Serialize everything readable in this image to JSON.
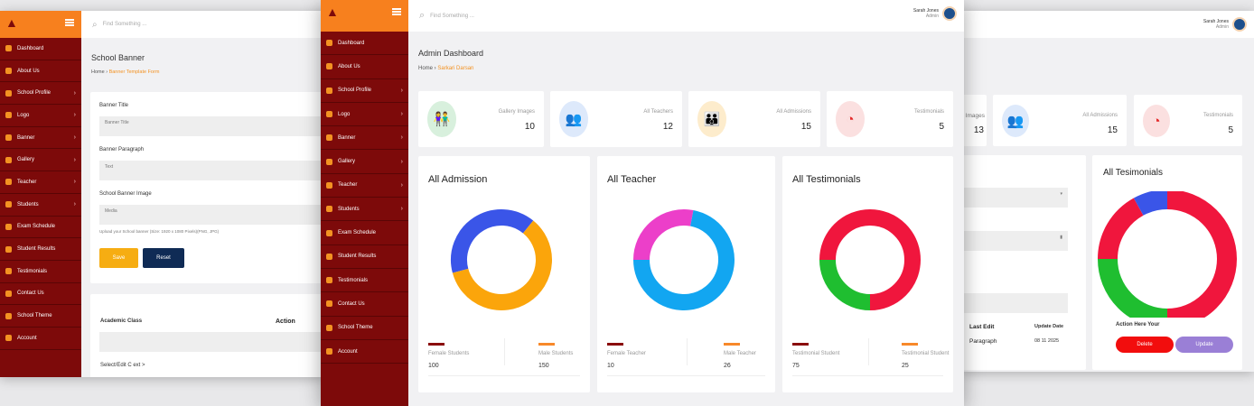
{
  "colors": {
    "sidebar": "#7d0a0a",
    "header": "#f7801e",
    "accent": "#f39222"
  },
  "left": {
    "sidebar": [
      {
        "label": "Dashboard"
      },
      {
        "label": "About Us"
      },
      {
        "label": "School Profile",
        "arrow": true
      },
      {
        "label": "Logo",
        "arrow": true
      },
      {
        "label": "Banner",
        "arrow": true
      },
      {
        "label": "Gallery",
        "arrow": true
      },
      {
        "label": "Teacher",
        "arrow": true
      },
      {
        "label": "Students",
        "arrow": true
      },
      {
        "label": "Exam Schedule"
      },
      {
        "label": "Student Results"
      },
      {
        "label": "Testimonials"
      },
      {
        "label": "Contact Us"
      },
      {
        "label": "School Theme"
      },
      {
        "label": "Account"
      }
    ],
    "search_placeholder": "Find Something ...",
    "title": "School Banner",
    "breadcrumb": {
      "home": "Home",
      "current": "Banner Template Form"
    },
    "form": {
      "title_label": "Banner Title",
      "title_placeholder": "Banner Title",
      "para_label": "Banner Paragraph",
      "para_placeholder": "Text",
      "image_label": "School Banner Image",
      "image_value": "Media",
      "hint": "Upload your School banner (Size: 1920 x 1080 Pixels)(PNG, JPG)",
      "save": "Save",
      "reset": "Reset"
    },
    "section2": {
      "label": "Academic Class",
      "right_label": "Action",
      "footer": "Select/Edit C ext >"
    }
  },
  "center": {
    "search_placeholder": "Find Something ...",
    "user": {
      "name": "Sarah Jones",
      "role": "Admin"
    },
    "sidebar": [
      {
        "label": "Dashboard"
      },
      {
        "label": "About Us"
      },
      {
        "label": "School Profile",
        "arrow": true
      },
      {
        "label": "Logo",
        "arrow": true
      },
      {
        "label": "Banner",
        "arrow": true
      },
      {
        "label": "Gallery",
        "arrow": true
      },
      {
        "label": "Teacher",
        "arrow": true
      },
      {
        "label": "Students",
        "arrow": true
      },
      {
        "label": "Exam Schedule"
      },
      {
        "label": "Student Results"
      },
      {
        "label": "Testimonials"
      },
      {
        "label": "Contact Us"
      },
      {
        "label": "School Theme"
      },
      {
        "label": "Account"
      }
    ],
    "title": "Admin Dashboard",
    "breadcrumb": {
      "home": "Home",
      "current": "Sarkari Darsan"
    },
    "stats": [
      {
        "label": "Gallery Images",
        "value": "10",
        "icon": "users-icon",
        "bg": "#d8f0dd",
        "fg": "#3aa35a"
      },
      {
        "label": "All Teachers",
        "value": "12",
        "icon": "group-icon",
        "bg": "#dde9fb",
        "fg": "#3b6fe0"
      },
      {
        "label": "All Admissions",
        "value": "15",
        "icon": "people-icon",
        "bg": "#fdeccc",
        "fg": "#f1a224"
      },
      {
        "label": "Testimonials",
        "value": "5",
        "icon": "gauge-icon",
        "bg": "#fbe0e0",
        "fg": "#e42a2a"
      }
    ],
    "charts": [
      {
        "title": "All Admission",
        "legend": [
          {
            "label": "Female Students",
            "value": "100"
          },
          {
            "label": "Male Students",
            "value": "150"
          }
        ]
      },
      {
        "title": "All Teacher",
        "legend": [
          {
            "label": "Female Teacher",
            "value": "10"
          },
          {
            "label": "Male Teacher",
            "value": "26"
          }
        ]
      },
      {
        "title": "All Testimonials",
        "legend": [
          {
            "label": "Testimonial Student",
            "value": "75"
          },
          {
            "label": "Testimonial Student",
            "value": "25"
          }
        ]
      }
    ]
  },
  "right": {
    "user": {
      "name": "Sarah Jones",
      "role": "Admin"
    },
    "stats": [
      {
        "label": "Images",
        "value": "13"
      },
      {
        "label": "All Admissions",
        "value": "15",
        "icon": "group-icon"
      },
      {
        "label": "Testimonials",
        "value": "5",
        "icon": "gauge-icon"
      }
    ],
    "chart_title": "All Tesimonials",
    "table": {
      "col1": "Last Edit",
      "col2": "Update Date",
      "row_c1": "Paragraph",
      "row_c2": "08 11 2025"
    },
    "footer_label": "Action Here Your",
    "delete": "Delete",
    "update": "Update"
  },
  "chart_data": [
    {
      "type": "pie",
      "title": "All Admission",
      "series": [
        {
          "name": "Female Students",
          "value": 100,
          "color": "#3a55e8"
        },
        {
          "name": "Male Students",
          "value": 150,
          "color": "#fba50b"
        }
      ]
    },
    {
      "type": "pie",
      "title": "All Teacher",
      "series": [
        {
          "name": "Female Teacher",
          "value": 28,
          "color": "#ec3fc9"
        },
        {
          "name": "Male Teacher",
          "value": 72,
          "color": "#12a6f1"
        }
      ]
    },
    {
      "type": "pie",
      "title": "All Testimonials",
      "series": [
        {
          "value": 75,
          "color": "#f0163d"
        },
        {
          "value": 25,
          "color": "#1fbe30"
        }
      ],
      "start": "green at 180deg"
    },
    {
      "type": "pie",
      "title": "All Tesimonials",
      "series": [
        {
          "value": 50,
          "color": "#f0163d"
        },
        {
          "value": 25,
          "color": "#1fbe30"
        },
        {
          "value": 17,
          "color": "#f0163d"
        },
        {
          "value": 8,
          "color": "#3a55e8"
        }
      ]
    }
  ]
}
